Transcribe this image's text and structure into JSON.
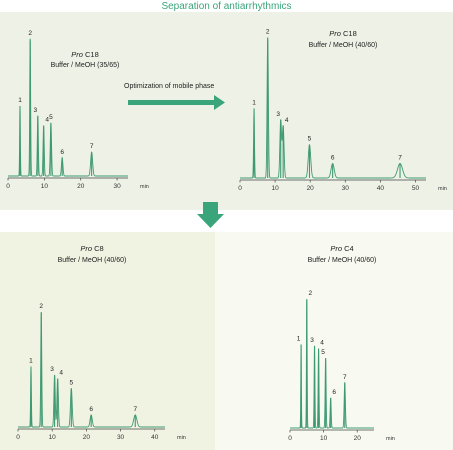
{
  "title": "Separation of antiarrhythmics",
  "arrow_label": "Optimization of mobile phase",
  "colors": {
    "title": "#3aa57a",
    "arrow": "#3aa57a",
    "panel_top_left": "#eef2e6",
    "panel_top_right": "#eef2e6",
    "panel_bottom_left": "#f1f3e2",
    "panel_bottom_right": "#f8f9f0",
    "trace": "#3f9a73",
    "axis": "#444444"
  },
  "chart_data": [
    {
      "type": "line",
      "column": "Pro C18",
      "mobile_phase": "Buffer / MeOH (35/65)",
      "xlabel": "min",
      "xlim": [
        0,
        33
      ],
      "x_ticks": [
        0,
        10,
        20,
        30
      ],
      "ylim": [
        0,
        1
      ],
      "peaks": [
        {
          "label": "1",
          "time": 3.3,
          "height": 0.5
        },
        {
          "label": "2",
          "time": 6.1,
          "height": 0.98
        },
        {
          "label": "3",
          "time": 8.2,
          "height": 0.43
        },
        {
          "label": "4",
          "time": 9.8,
          "height": 0.36
        },
        {
          "label": "5",
          "time": 11.8,
          "height": 0.38
        },
        {
          "label": "6",
          "time": 14.9,
          "height": 0.13
        },
        {
          "label": "7",
          "time": 23.0,
          "height": 0.17
        }
      ]
    },
    {
      "type": "line",
      "column": "Pro C18",
      "mobile_phase": "Buffer / MeOH (40/60)",
      "xlabel": "min",
      "xlim": [
        0,
        53
      ],
      "x_ticks": [
        0,
        10,
        20,
        30,
        40,
        50
      ],
      "ylim": [
        0,
        1
      ],
      "peaks": [
        {
          "label": "1",
          "time": 4.0,
          "height": 0.48
        },
        {
          "label": "2",
          "time": 7.9,
          "height": 0.97
        },
        {
          "label": "3",
          "time": 11.6,
          "height": 0.4
        },
        {
          "label": "4",
          "time": 12.3,
          "height": 0.36
        },
        {
          "label": "5",
          "time": 19.8,
          "height": 0.23
        },
        {
          "label": "6",
          "time": 26.4,
          "height": 0.1
        },
        {
          "label": "7",
          "time": 45.6,
          "height": 0.1
        }
      ]
    },
    {
      "type": "line",
      "column": "Pro C8",
      "mobile_phase": "Buffer / MeOH (40/60)",
      "xlabel": "min",
      "xlim": [
        0,
        43
      ],
      "x_ticks": [
        0,
        10,
        20,
        30,
        40
      ],
      "ylim": [
        0,
        1
      ],
      "peaks": [
        {
          "label": "1",
          "time": 3.8,
          "height": 0.5
        },
        {
          "label": "2",
          "time": 6.8,
          "height": 0.95
        },
        {
          "label": "3",
          "time": 10.7,
          "height": 0.43
        },
        {
          "label": "4",
          "time": 11.6,
          "height": 0.4
        },
        {
          "label": "5",
          "time": 15.6,
          "height": 0.32
        },
        {
          "label": "6",
          "time": 21.4,
          "height": 0.1
        },
        {
          "label": "7",
          "time": 34.3,
          "height": 0.1
        }
      ]
    },
    {
      "type": "line",
      "column": "Pro C4",
      "mobile_phase": "Buffer / MeOH (40/60)",
      "xlabel": "min",
      "xlim": [
        0,
        25
      ],
      "x_ticks": [
        0,
        10,
        20
      ],
      "ylim": [
        0,
        1
      ],
      "peaks": [
        {
          "label": "1",
          "time": 3.3,
          "height": 0.61
        },
        {
          "label": "2",
          "time": 5.0,
          "height": 0.94
        },
        {
          "label": "3",
          "time": 7.3,
          "height": 0.6
        },
        {
          "label": "4",
          "time": 8.5,
          "height": 0.58
        },
        {
          "label": "5",
          "time": 10.6,
          "height": 0.51
        },
        {
          "label": "6",
          "time": 12.1,
          "height": 0.22
        },
        {
          "label": "7",
          "time": 16.3,
          "height": 0.33
        }
      ]
    }
  ]
}
